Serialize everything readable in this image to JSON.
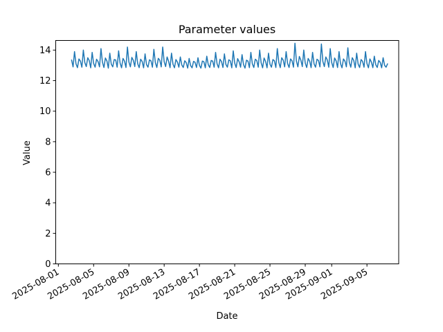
{
  "colors": {
    "line": "#1f77b4",
    "axis": "#000000",
    "background": "#ffffff"
  },
  "chart_data": {
    "type": "line",
    "title": "Parameter values",
    "xlabel": "Date",
    "ylabel": "Value",
    "grid": false,
    "legend": null,
    "ylim": [
      0,
      14.63
    ],
    "yticks": [
      0,
      2,
      4,
      6,
      8,
      10,
      12,
      14
    ],
    "xlim_days": [
      -0.3,
      38.6
    ],
    "xticks": [
      {
        "label": "2025-08-01",
        "day": 0
      },
      {
        "label": "2025-08-05",
        "day": 4
      },
      {
        "label": "2025-08-09",
        "day": 8
      },
      {
        "label": "2025-08-13",
        "day": 12
      },
      {
        "label": "2025-08-17",
        "day": 16
      },
      {
        "label": "2025-08-21",
        "day": 20
      },
      {
        "label": "2025-08-25",
        "day": 24
      },
      {
        "label": "2025-08-29",
        "day": 28
      },
      {
        "label": "2025-09-01",
        "day": 31
      },
      {
        "label": "2025-09-05",
        "day": 35
      }
    ],
    "x_start": "2025-08-02T12:00",
    "x_interval_hours": 4,
    "x_start_day_offset": 1.5,
    "x_step_days": 0.1666667,
    "values": [
      13.35,
      12.9,
      13.9,
      13.1,
      12.85,
      13.42,
      13.28,
      12.88,
      14.0,
      13.18,
      12.92,
      13.5,
      13.32,
      12.84,
      13.85,
      13.12,
      12.88,
      13.4,
      13.25,
      12.9,
      14.1,
      13.2,
      12.86,
      13.48,
      13.3,
      12.82,
      13.8,
      13.08,
      12.9,
      13.38,
      13.35,
      12.88,
      13.95,
      13.15,
      12.84,
      13.45,
      13.28,
      12.86,
      14.2,
      13.22,
      12.9,
      13.52,
      13.33,
      12.92,
      13.9,
      13.1,
      12.85,
      13.4,
      13.26,
      12.84,
      13.75,
      13.05,
      12.88,
      13.36,
      13.3,
      12.88,
      14.05,
      13.18,
      12.86,
      13.46,
      13.34,
      12.9,
      14.2,
      13.24,
      12.92,
      13.55,
      13.27,
      12.85,
      13.8,
      13.08,
      12.84,
      13.38,
      13.22,
      12.88,
      13.55,
      13.02,
      12.86,
      13.3,
      13.18,
      12.82,
      13.45,
      12.98,
      12.84,
      13.26,
      13.2,
      12.86,
      13.5,
      13.0,
      12.82,
      13.28,
      13.24,
      12.84,
      13.6,
      13.05,
      12.86,
      13.32,
      13.28,
      12.88,
      13.85,
      13.1,
      12.84,
      13.4,
      13.25,
      12.86,
      13.75,
      13.06,
      12.88,
      13.36,
      13.3,
      12.84,
      13.95,
      13.14,
      12.86,
      13.44,
      13.24,
      12.88,
      13.7,
      13.05,
      12.82,
      13.34,
      13.28,
      12.85,
      13.85,
      13.1,
      12.86,
      13.4,
      13.32,
      12.88,
      14.0,
      13.16,
      12.84,
      13.48,
      13.26,
      12.84,
      13.8,
      13.08,
      12.88,
      13.38,
      13.3,
      12.86,
      14.1,
      13.2,
      12.85,
      13.5,
      13.34,
      12.9,
      13.9,
      13.12,
      12.86,
      13.42,
      13.3,
      12.88,
      14.45,
      13.28,
      12.9,
      13.58,
      13.35,
      12.92,
      14.0,
      13.15,
      12.86,
      13.45,
      13.28,
      12.85,
      13.85,
      13.1,
      12.88,
      13.4,
      13.32,
      12.9,
      14.4,
      13.25,
      12.92,
      13.55,
      13.36,
      12.88,
      14.1,
      13.18,
      12.86,
      13.48,
      13.3,
      12.86,
      13.9,
      13.12,
      12.84,
      13.42,
      13.28,
      12.9,
      14.15,
      13.2,
      12.88,
      13.5,
      13.32,
      12.84,
      13.8,
      13.08,
      12.86,
      13.38,
      13.26,
      12.88,
      13.9,
      13.12,
      12.84,
      13.42,
      13.22,
      12.85,
      13.6,
      13.04,
      12.86,
      13.32,
      13.2,
      12.84,
      13.5,
      13.0,
      12.88,
      13.1
    ]
  }
}
